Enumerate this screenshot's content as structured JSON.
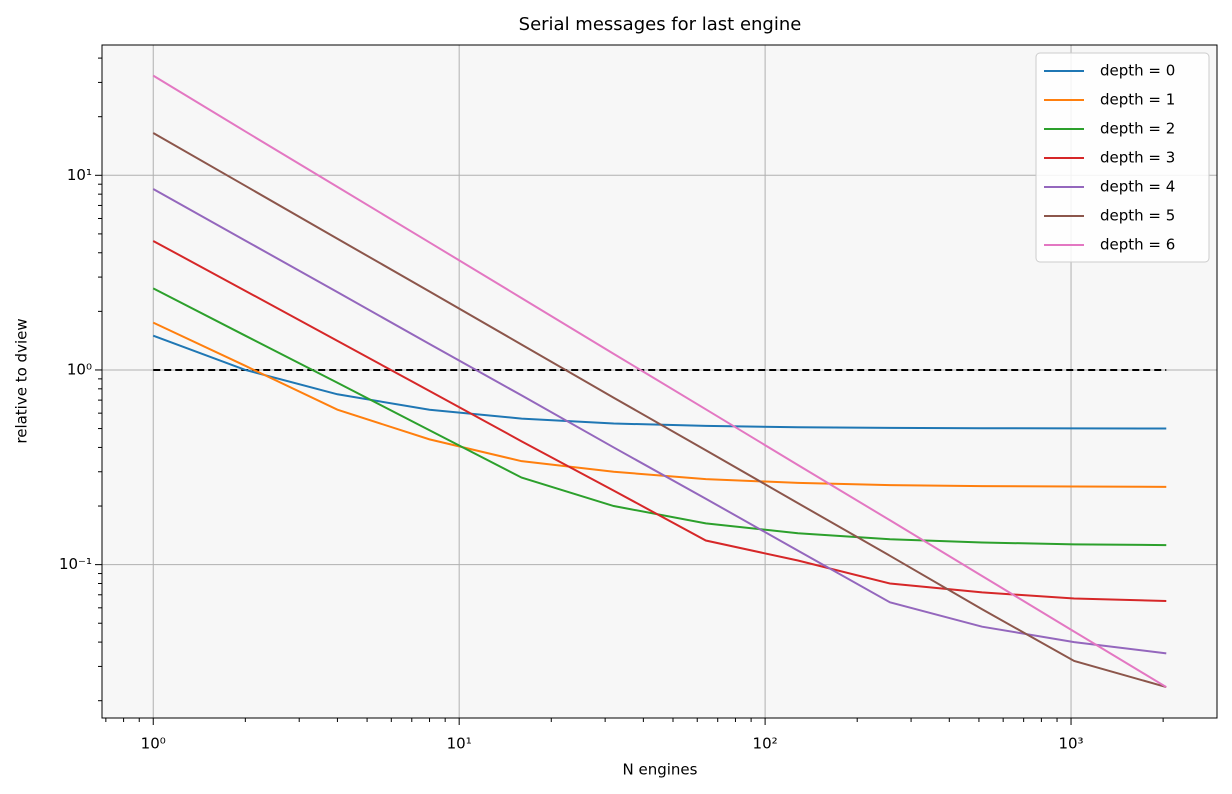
{
  "chart_data": {
    "type": "line",
    "title": "Serial messages for last engine",
    "x_label": "N engines",
    "y_label": "relative to dview",
    "x": [
      1,
      2,
      4,
      8,
      16,
      32,
      64,
      128,
      256,
      512,
      1024,
      2048
    ],
    "series": [
      {
        "name": "depth = 0",
        "color": "#1f77b4",
        "values": [
          1.5,
          1.0,
          0.75,
          0.625,
          0.5625,
          0.531,
          0.516,
          0.508,
          0.504,
          0.502,
          0.501,
          0.5005
        ]
      },
      {
        "name": "depth = 1",
        "color": "#ff7f0e",
        "values": [
          1.75,
          1.05,
          0.625,
          0.44,
          0.34,
          0.3,
          0.275,
          0.263,
          0.256,
          0.253,
          0.252,
          0.251
        ]
      },
      {
        "name": "depth = 2",
        "color": "#2ca02c",
        "values": [
          2.625,
          1.5,
          0.86,
          0.49,
          0.28,
          0.2,
          0.163,
          0.145,
          0.135,
          0.13,
          0.127,
          0.126
        ]
      },
      {
        "name": "depth = 3",
        "color": "#d62728",
        "values": [
          4.6,
          2.55,
          1.41,
          0.78,
          0.43,
          0.24,
          0.133,
          0.105,
          0.08,
          0.072,
          0.067,
          0.065
        ]
      },
      {
        "name": "depth = 4",
        "color": "#9467bd",
        "values": [
          8.5,
          4.62,
          2.51,
          1.36,
          0.74,
          0.4,
          0.218,
          0.118,
          0.064,
          0.048,
          0.04,
          0.035
        ]
      },
      {
        "name": "depth = 5",
        "color": "#8c564b",
        "values": [
          16.5,
          8.83,
          4.72,
          2.53,
          1.35,
          0.72,
          0.387,
          0.207,
          0.111,
          0.059,
          0.032,
          0.0235
        ]
      },
      {
        "name": "depth = 6",
        "color": "#e377c2",
        "values": [
          32.5,
          16.8,
          8.72,
          4.52,
          2.34,
          1.21,
          0.628,
          0.325,
          0.169,
          0.0874,
          0.0453,
          0.0235
        ]
      }
    ],
    "reference_line": {
      "x": [
        1,
        2048
      ],
      "values": [
        1,
        1
      ],
      "color": "#000000",
      "dashed": true
    },
    "x_scale": "log",
    "y_scale": "log",
    "xlim": [
      0.68,
      3000
    ],
    "ylim": [
      0.0163,
      46.7
    ],
    "xticks": [
      {
        "value": 1,
        "label": "10⁰"
      },
      {
        "value": 10,
        "label": "10¹"
      },
      {
        "value": 100,
        "label": "10²"
      },
      {
        "value": 1000,
        "label": "10³"
      }
    ],
    "yticks": [
      {
        "value": 0.1,
        "label": "10⁻¹"
      },
      {
        "value": 1,
        "label": "10⁰"
      },
      {
        "value": 10,
        "label": "10¹"
      }
    ],
    "xminorticks": [
      0.7,
      0.8,
      0.9,
      2,
      3,
      4,
      5,
      6,
      7,
      8,
      9,
      20,
      30,
      40,
      50,
      60,
      70,
      80,
      90,
      200,
      300,
      400,
      500,
      600,
      700,
      800,
      900,
      2000
    ],
    "yminorticks": [
      0.02,
      0.03,
      0.04,
      0.05,
      0.06,
      0.07,
      0.08,
      0.09,
      0.2,
      0.3,
      0.4,
      0.5,
      0.6,
      0.7,
      0.8,
      0.9,
      2,
      3,
      4,
      5,
      6,
      7,
      8,
      9,
      20,
      30,
      40
    ],
    "grid": true,
    "legend_position": "upper right",
    "plot_background": "#f7f7f7"
  }
}
